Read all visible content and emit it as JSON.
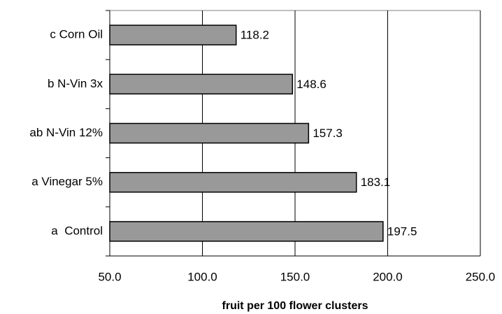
{
  "chart_data": {
    "type": "barh",
    "categories": [
      "c Corn Oil",
      "b N-Vin 3x",
      "ab N-Vin 12%",
      "a Vinegar 5%",
      "a  Control"
    ],
    "values": [
      118.2,
      148.6,
      157.3,
      183.1,
      197.5
    ],
    "color": "#999999",
    "xlabel": "fruit per 100 flower clusters",
    "xlim": [
      50,
      250
    ],
    "xticks": [
      {
        "value": 50,
        "label": "50.0"
      },
      {
        "value": 100,
        "label": "100.0"
      },
      {
        "value": 150,
        "label": "150.0"
      },
      {
        "value": 200,
        "label": "200.0"
      },
      {
        "value": 250,
        "label": "250.0"
      }
    ],
    "grid": true
  }
}
